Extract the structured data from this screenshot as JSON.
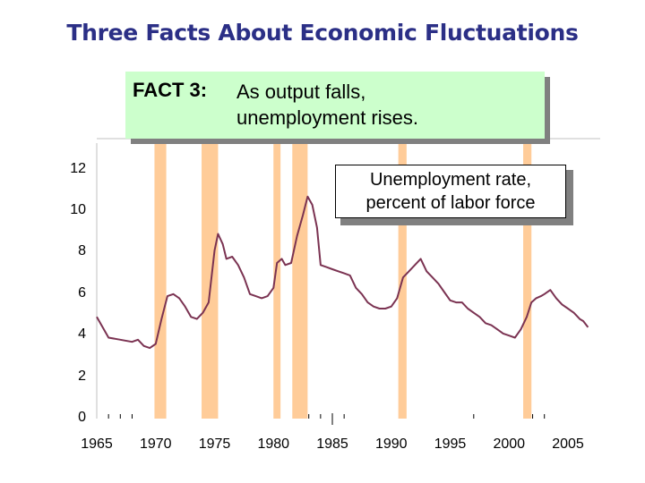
{
  "title": "Three Facts About Economic Fluctuations",
  "fact": {
    "label": "FACT 3:",
    "line1": "As output falls,",
    "line2": "unemployment rises."
  },
  "legend": {
    "line1": "Unemployment rate,",
    "line2": "percent of labor force"
  },
  "colors": {
    "title": "#2b2f86",
    "fact_box": "#ccffcc",
    "recession_bar": "#ffcc99",
    "series": "#7b3352"
  },
  "chart_data": {
    "type": "line",
    "title": "Unemployment rate, percent of labor force",
    "xlabel": "",
    "ylabel": "",
    "xlim": [
      1965,
      2007
    ],
    "ylim": [
      0,
      12
    ],
    "grid": false,
    "yticks": [
      "0",
      "2",
      "4",
      "6",
      "8",
      "10",
      "12"
    ],
    "xticks": [
      "1965",
      "1970",
      "1975",
      "1980",
      "1985",
      "1990",
      "1995",
      "2000",
      "2005"
    ],
    "recession_shading": [
      [
        1969.9,
        1970.9
      ],
      [
        1973.9,
        1975.3
      ],
      [
        1980.0,
        1980.6
      ],
      [
        1981.6,
        1982.9
      ],
      [
        1990.6,
        1991.3
      ],
      [
        2001.2,
        2001.9
      ]
    ],
    "series": [
      {
        "name": "Unemployment rate",
        "x": [
          1965,
          1965.5,
          1966,
          1967,
          1968,
          1968.5,
          1969,
          1969.5,
          1970,
          1970.5,
          1971,
          1971.5,
          1972,
          1972.5,
          1973,
          1973.5,
          1974,
          1974.5,
          1975,
          1975.3,
          1975.7,
          1976,
          1976.5,
          1977,
          1977.5,
          1978,
          1978.5,
          1979,
          1979.5,
          1980,
          1980.3,
          1980.7,
          1981,
          1981.5,
          1982,
          1982.5,
          1982.9,
          1983.3,
          1983.7,
          1984,
          1984.5,
          1985,
          1985.5,
          1986,
          1986.5,
          1987,
          1987.5,
          1988,
          1988.5,
          1989,
          1989.5,
          1990,
          1990.5,
          1991,
          1991.5,
          1992,
          1992.5,
          1993,
          1993.5,
          1994,
          1994.5,
          1995,
          1995.5,
          1996,
          1996.5,
          1997,
          1997.5,
          1998,
          1998.5,
          1999,
          1999.5,
          2000,
          2000.5,
          2001,
          2001.5,
          2001.9,
          2002.3,
          2002.7,
          2003,
          2003.5,
          2004,
          2004.5,
          2005,
          2005.5,
          2006,
          2006.3,
          2006.7
        ],
        "values": [
          4.9,
          4.4,
          3.9,
          3.8,
          3.7,
          3.8,
          3.5,
          3.4,
          3.6,
          4.8,
          5.9,
          6.0,
          5.8,
          5.4,
          4.9,
          4.8,
          5.1,
          5.6,
          8.1,
          8.9,
          8.4,
          7.7,
          7.8,
          7.4,
          6.8,
          6.0,
          5.9,
          5.8,
          5.9,
          6.3,
          7.5,
          7.7,
          7.4,
          7.5,
          8.8,
          9.8,
          10.7,
          10.3,
          9.2,
          7.4,
          7.3,
          7.2,
          7.1,
          7.0,
          6.9,
          6.3,
          6.0,
          5.6,
          5.4,
          5.3,
          5.3,
          5.4,
          5.8,
          6.8,
          7.1,
          7.4,
          7.7,
          7.1,
          6.8,
          6.5,
          6.1,
          5.7,
          5.6,
          5.6,
          5.3,
          5.1,
          4.9,
          4.6,
          4.5,
          4.3,
          4.1,
          4.0,
          3.9,
          4.3,
          4.9,
          5.6,
          5.8,
          5.9,
          6.0,
          6.2,
          5.8,
          5.5,
          5.3,
          5.1,
          4.8,
          4.7,
          4.4
        ]
      }
    ]
  }
}
